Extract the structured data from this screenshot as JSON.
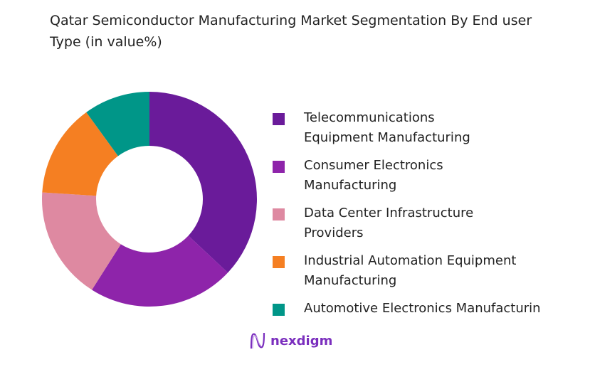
{
  "chart_data": {
    "type": "pie",
    "donut": true,
    "title": "Qatar Semiconductor Manufacturing Market Segmentation By End user Type (in value%)",
    "legend_position": "right",
    "slices": [
      {
        "label": "Telecommunications Equipment Manufacturing",
        "legend_lines": [
          "Telecommunications",
          "Equipment Manufacturing"
        ],
        "value": 37,
        "color": "#6a1b9a"
      },
      {
        "label": "Consumer Electronics Manufacturing",
        "legend_lines": [
          "Consumer Electronics",
          "Manufacturing"
        ],
        "value": 22,
        "color": "#8e24aa"
      },
      {
        "label": "Data Center Infrastructure Providers",
        "legend_lines": [
          "Data Center Infrastructure",
          "Providers"
        ],
        "value": 17,
        "color": "#de89a1"
      },
      {
        "label": "Industrial Automation Equipment Manufacturing",
        "legend_lines": [
          "Industrial Automation Equipment",
          "Manufacturing"
        ],
        "value": 14,
        "color": "#f57f22"
      },
      {
        "label": "Automotive Electronics Manufacturing",
        "legend_lines": [
          "Automotive Electronics Manufacturing"
        ],
        "value": 10,
        "color": "#009688"
      }
    ]
  },
  "logo": {
    "text": "nexdigm",
    "color": "#7b2fbe"
  }
}
